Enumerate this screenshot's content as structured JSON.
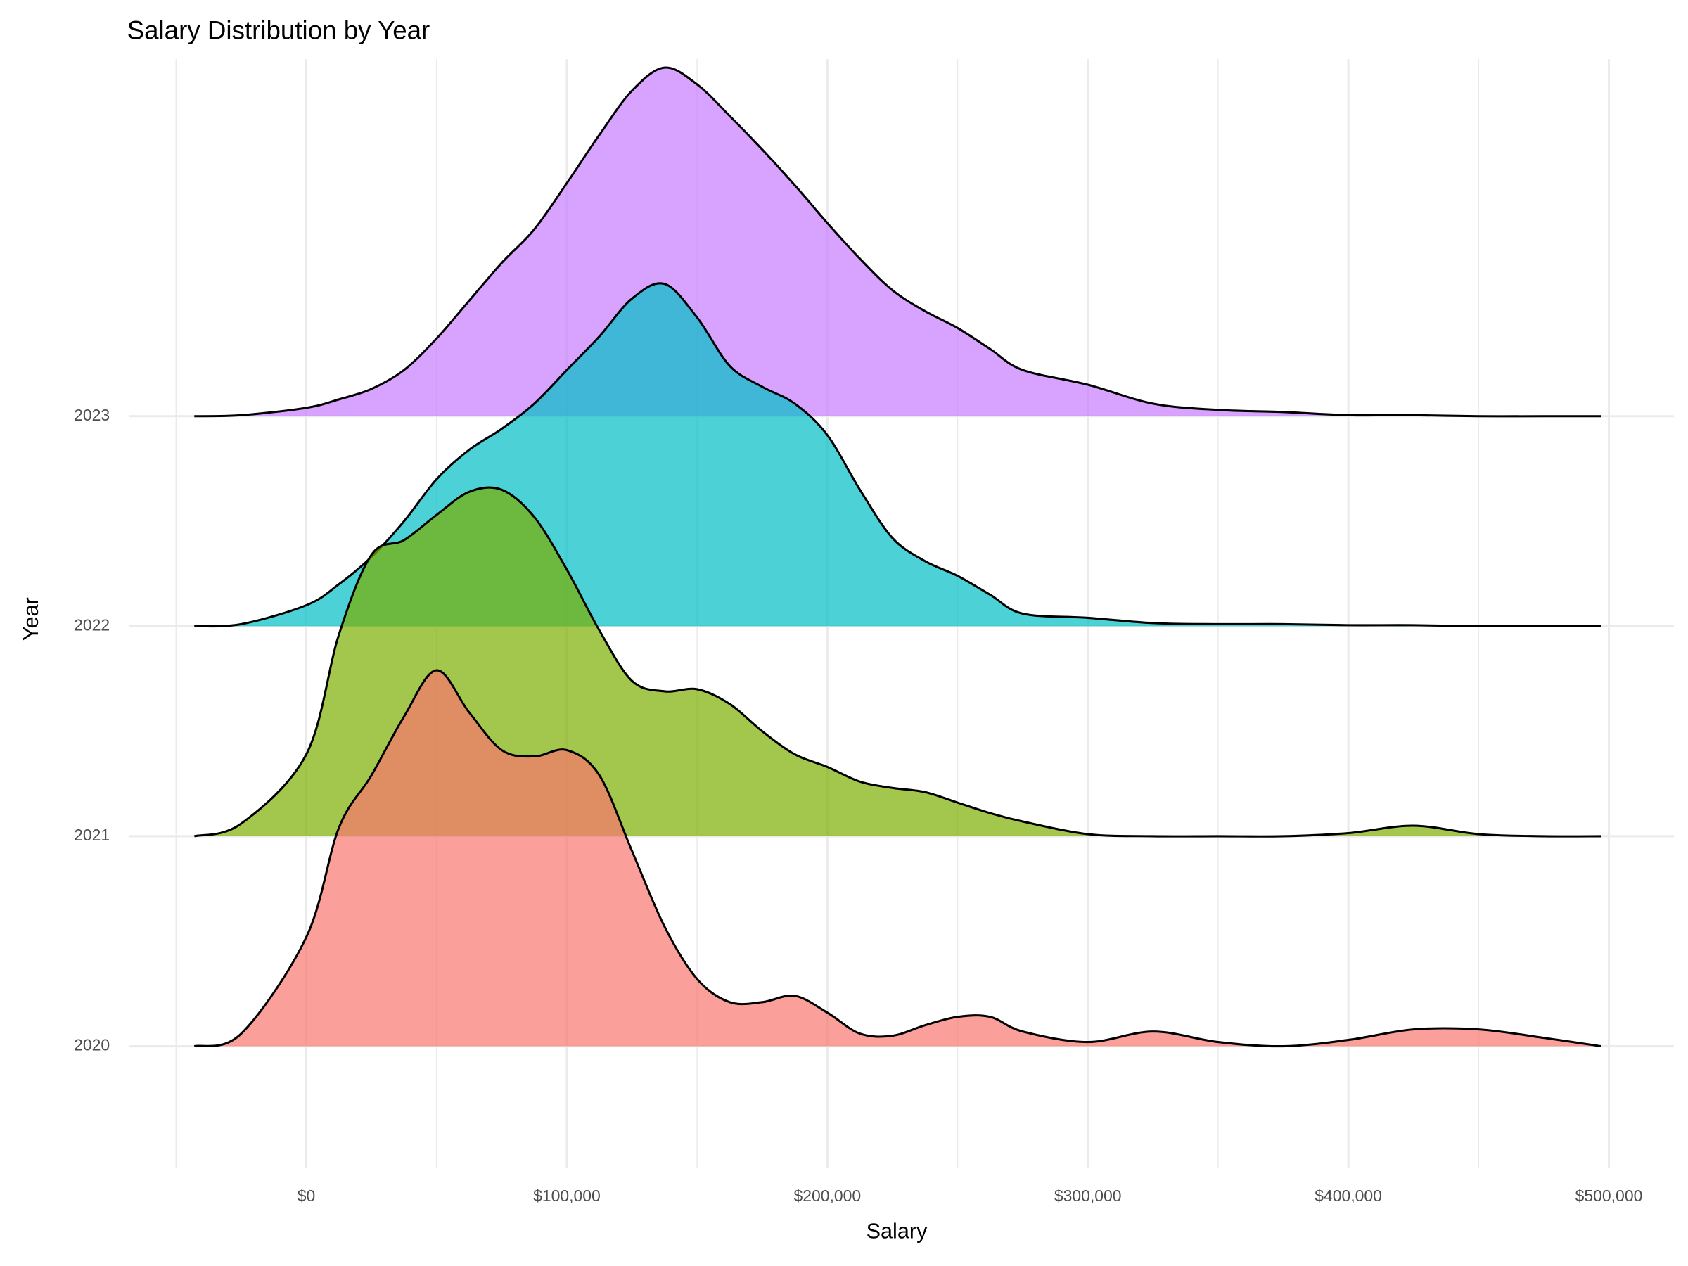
{
  "chart_data": {
    "type": "ridgeline",
    "title": "Salary Distribution by Year",
    "x_label": "Salary",
    "y_label": "Year",
    "xlim": [
      -68000,
      525000
    ],
    "ylim": [
      -0.58,
      4.7
    ],
    "xticks": [
      {
        "value": 0,
        "label": "$0"
      },
      {
        "value": 100000,
        "label": "$100,000"
      },
      {
        "value": 200000,
        "label": "$200,000"
      },
      {
        "value": 300000,
        "label": "$300,000"
      },
      {
        "value": 400000,
        "label": "$400,000"
      },
      {
        "value": 500000,
        "label": "$500,000"
      }
    ],
    "xminor": [
      -50000,
      50000,
      150000,
      250000,
      350000,
      450000
    ],
    "grid": true,
    "fill_opacity": 0.7,
    "line_color": "#000000",
    "x": [
      -43000,
      -25000,
      0,
      12500,
      25000,
      37500,
      50000,
      62500,
      75000,
      87500,
      100000,
      112500,
      125000,
      137500,
      150000,
      162500,
      175000,
      187500,
      200000,
      212500,
      225000,
      237500,
      250000,
      262500,
      275000,
      300000,
      325000,
      350000,
      375000,
      400000,
      425000,
      450000,
      475000,
      497000
    ],
    "series": [
      {
        "name": "2020",
        "color": "#F8766D",
        "values": [
          0,
          0.06,
          0.52,
          1.04,
          1.29,
          1.57,
          1.79,
          1.59,
          1.41,
          1.38,
          1.41,
          1.29,
          0.93,
          0.57,
          0.32,
          0.21,
          0.21,
          0.24,
          0.16,
          0.06,
          0.05,
          0.1,
          0.14,
          0.14,
          0.07,
          0.02,
          0.07,
          0.02,
          0,
          0.03,
          0.08,
          0.08,
          0.04,
          0
        ]
      },
      {
        "name": "2021",
        "color": "#7CAE00",
        "values": [
          0,
          0.06,
          0.39,
          0.96,
          1.34,
          1.41,
          1.53,
          1.64,
          1.65,
          1.52,
          1.27,
          0.98,
          0.74,
          0.69,
          0.7,
          0.63,
          0.5,
          0.39,
          0.33,
          0.26,
          0.23,
          0.21,
          0.16,
          0.11,
          0.07,
          0.01,
          0,
          0,
          0,
          0.015,
          0.05,
          0.01,
          0,
          0
        ]
      },
      {
        "name": "2022",
        "color": "#00BFC4",
        "values": [
          0,
          0.01,
          0.1,
          0.2,
          0.33,
          0.5,
          0.7,
          0.84,
          0.94,
          1.06,
          1.22,
          1.38,
          1.56,
          1.63,
          1.47,
          1.24,
          1.14,
          1.06,
          0.91,
          0.65,
          0.42,
          0.31,
          0.24,
          0.15,
          0.06,
          0.04,
          0.015,
          0.01,
          0.01,
          0.005,
          0.005,
          0,
          0,
          0
        ]
      },
      {
        "name": "2023",
        "color": "#C77CFF",
        "values": [
          0,
          0.005,
          0.04,
          0.08,
          0.13,
          0.22,
          0.37,
          0.55,
          0.73,
          0.89,
          1.11,
          1.34,
          1.55,
          1.66,
          1.58,
          1.43,
          1.27,
          1.1,
          0.92,
          0.75,
          0.6,
          0.5,
          0.42,
          0.32,
          0.22,
          0.15,
          0.06,
          0.03,
          0.02,
          0.005,
          0.005,
          0,
          0,
          0
        ]
      }
    ]
  }
}
